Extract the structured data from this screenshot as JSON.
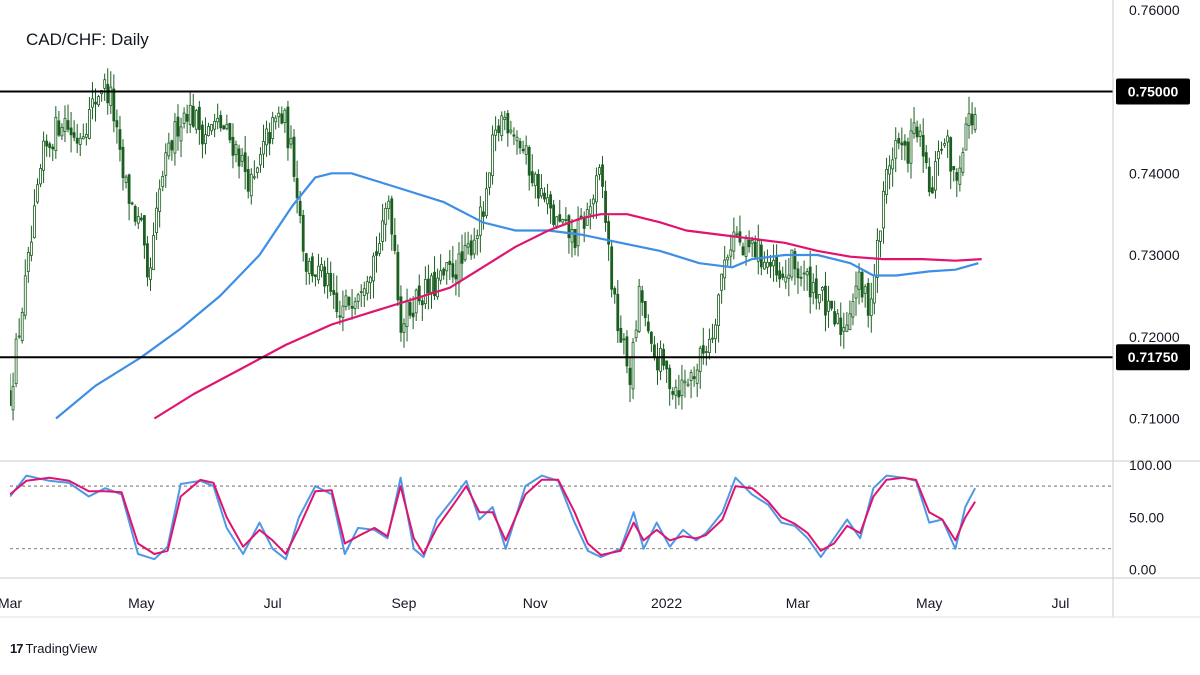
{
  "header": {
    "title": "CAD/CHF: Daily"
  },
  "branding": {
    "logo_glyph": "17",
    "logo_text": "TradingView"
  },
  "colors": {
    "candle": "#1b5e20",
    "ma_blue": "#3d8ee6",
    "ma_pink": "#e0136f",
    "stoch_k": "#4f98e8",
    "stoch_d": "#e0136f",
    "level_line": "#000000",
    "axis_border": "#cccccc"
  },
  "chart_data": [
    {
      "type": "line",
      "title": "CAD/CHF: Daily",
      "y_axis": {
        "ticks": [
          "0.76000",
          "0.74000",
          "0.73000",
          "0.72000",
          "0.71000"
        ],
        "tick_values": [
          0.76,
          0.74,
          0.73,
          0.72,
          0.71
        ],
        "range": [
          0.7048,
          0.7612
        ]
      },
      "x_axis": {
        "ticks": [
          "Mar",
          "May",
          "Jul",
          "Sep",
          "Nov",
          "2022",
          "Mar",
          "May",
          "Jul"
        ],
        "tick_months": [
          0,
          2,
          4,
          6,
          8,
          10,
          12,
          14,
          16
        ],
        "range_months": [
          0,
          16.8
        ]
      },
      "levels": [
        {
          "label": "0.75000",
          "value": 0.75
        },
        {
          "label": "0.71750",
          "value": 0.7175
        }
      ],
      "candles_close_by_month": [
        [
          0.0,
          0.713
        ],
        [
          0.3,
          0.73
        ],
        [
          0.5,
          0.742
        ],
        [
          0.8,
          0.747
        ],
        [
          1.0,
          0.744
        ],
        [
          1.2,
          0.747
        ],
        [
          1.4,
          0.751
        ],
        [
          1.55,
          0.749
        ],
        [
          1.7,
          0.74
        ],
        [
          1.9,
          0.735
        ],
        [
          2.0,
          0.733
        ],
        [
          2.1,
          0.7255
        ],
        [
          2.3,
          0.739
        ],
        [
          2.55,
          0.746
        ],
        [
          2.7,
          0.748
        ],
        [
          2.95,
          0.745
        ],
        [
          3.2,
          0.746
        ],
        [
          3.45,
          0.743
        ],
        [
          3.7,
          0.738
        ],
        [
          3.9,
          0.744
        ],
        [
          4.1,
          0.747
        ],
        [
          4.2,
          0.746
        ],
        [
          4.35,
          0.74
        ],
        [
          4.5,
          0.729
        ],
        [
          4.8,
          0.727
        ],
        [
          5.0,
          0.722
        ],
        [
          5.2,
          0.725
        ],
        [
          5.5,
          0.729
        ],
        [
          5.7,
          0.733
        ],
        [
          5.75,
          0.738
        ],
        [
          5.85,
          0.732
        ],
        [
          5.95,
          0.7215
        ],
        [
          6.2,
          0.725
        ],
        [
          6.45,
          0.726
        ],
        [
          6.7,
          0.728
        ],
        [
          6.9,
          0.729
        ],
        [
          7.1,
          0.733
        ],
        [
          7.25,
          0.736
        ],
        [
          7.35,
          0.743
        ],
        [
          7.5,
          0.747
        ],
        [
          7.65,
          0.746
        ],
        [
          7.85,
          0.742
        ],
        [
          8.0,
          0.739
        ],
        [
          8.3,
          0.734
        ],
        [
          8.6,
          0.732
        ],
        [
          8.8,
          0.735
        ],
        [
          9.0,
          0.74
        ],
        [
          9.05,
          0.736
        ],
        [
          9.2,
          0.724
        ],
        [
          9.3,
          0.72
        ],
        [
          9.45,
          0.715
        ],
        [
          9.6,
          0.726
        ],
        [
          9.75,
          0.718
        ],
        [
          9.9,
          0.717
        ],
        [
          10.1,
          0.714
        ],
        [
          10.25,
          0.714
        ],
        [
          10.45,
          0.716
        ],
        [
          10.7,
          0.721
        ],
        [
          10.9,
          0.73
        ],
        [
          11.05,
          0.733
        ],
        [
          11.15,
          0.73
        ],
        [
          11.3,
          0.731
        ],
        [
          11.55,
          0.729
        ],
        [
          11.75,
          0.726
        ],
        [
          11.9,
          0.729
        ],
        [
          12.1,
          0.727
        ],
        [
          12.3,
          0.726
        ],
        [
          12.5,
          0.722
        ],
        [
          12.7,
          0.721
        ],
        [
          12.9,
          0.727
        ],
        [
          13.0,
          0.725
        ],
        [
          13.1,
          0.724
        ],
        [
          13.25,
          0.733
        ],
        [
          13.35,
          0.74
        ],
        [
          13.5,
          0.744
        ],
        [
          13.65,
          0.742
        ],
        [
          13.8,
          0.746
        ],
        [
          13.95,
          0.74
        ],
        [
          14.05,
          0.737
        ],
        [
          14.15,
          0.744
        ],
        [
          14.3,
          0.743
        ],
        [
          14.4,
          0.738
        ],
        [
          14.55,
          0.746
        ],
        [
          14.7,
          0.747
        ]
      ],
      "series": [
        {
          "role": "moving_average_blue",
          "points": [
            [
              0.7,
              0.71
            ],
            [
              1.3,
              0.714
            ],
            [
              2.0,
              0.7175
            ],
            [
              2.6,
              0.721
            ],
            [
              3.2,
              0.725
            ],
            [
              3.8,
              0.73
            ],
            [
              4.3,
              0.736
            ],
            [
              4.65,
              0.7395
            ],
            [
              4.9,
              0.74
            ],
            [
              5.2,
              0.74
            ],
            [
              5.8,
              0.7385
            ],
            [
              6.6,
              0.7365
            ],
            [
              7.2,
              0.734
            ],
            [
              7.7,
              0.733
            ],
            [
              8.2,
              0.733
            ],
            [
              8.7,
              0.7325
            ],
            [
              9.3,
              0.7315
            ],
            [
              9.9,
              0.7305
            ],
            [
              10.5,
              0.729
            ],
            [
              11.0,
              0.7285
            ],
            [
              11.3,
              0.7295
            ],
            [
              11.8,
              0.73
            ],
            [
              12.3,
              0.73
            ],
            [
              12.8,
              0.729
            ],
            [
              13.15,
              0.7275
            ],
            [
              13.5,
              0.7275
            ],
            [
              14.0,
              0.728
            ],
            [
              14.4,
              0.7282
            ],
            [
              14.75,
              0.729
            ]
          ]
        },
        {
          "role": "moving_average_pink",
          "points": [
            [
              2.2,
              0.71
            ],
            [
              2.8,
              0.713
            ],
            [
              3.5,
              0.716
            ],
            [
              4.2,
              0.719
            ],
            [
              4.9,
              0.7215
            ],
            [
              5.5,
              0.723
            ],
            [
              6.1,
              0.7245
            ],
            [
              6.7,
              0.726
            ],
            [
              7.2,
              0.7285
            ],
            [
              7.7,
              0.731
            ],
            [
              8.2,
              0.733
            ],
            [
              8.7,
              0.7345
            ],
            [
              9.0,
              0.735
            ],
            [
              9.4,
              0.735
            ],
            [
              9.9,
              0.734
            ],
            [
              10.3,
              0.733
            ],
            [
              10.8,
              0.7325
            ],
            [
              11.3,
              0.732
            ],
            [
              11.8,
              0.7315
            ],
            [
              12.3,
              0.7305
            ],
            [
              12.8,
              0.7298
            ],
            [
              13.3,
              0.7295
            ],
            [
              13.9,
              0.7295
            ],
            [
              14.4,
              0.7293
            ],
            [
              14.8,
              0.7295
            ]
          ]
        }
      ]
    },
    {
      "type": "line",
      "title": "",
      "y_axis": {
        "ticks": [
          "100.00",
          "50.00",
          "0.00"
        ],
        "tick_values": [
          100,
          50,
          0
        ],
        "range": [
          -8,
          104
        ]
      },
      "overbought": 80,
      "oversold": 20,
      "series": [
        {
          "role": "stochastic_k",
          "points": [
            [
              0.0,
              70
            ],
            [
              0.25,
              90
            ],
            [
              0.6,
              85
            ],
            [
              0.9,
              83
            ],
            [
              1.2,
              70
            ],
            [
              1.45,
              78
            ],
            [
              1.7,
              72
            ],
            [
              1.95,
              15
            ],
            [
              2.2,
              10
            ],
            [
              2.4,
              22
            ],
            [
              2.6,
              82
            ],
            [
              2.9,
              85
            ],
            [
              3.1,
              80
            ],
            [
              3.3,
              40
            ],
            [
              3.55,
              15
            ],
            [
              3.8,
              45
            ],
            [
              4.0,
              20
            ],
            [
              4.2,
              10
            ],
            [
              4.4,
              50
            ],
            [
              4.65,
              80
            ],
            [
              4.9,
              72
            ],
            [
              5.1,
              15
            ],
            [
              5.3,
              40
            ],
            [
              5.55,
              38
            ],
            [
              5.75,
              30
            ],
            [
              5.95,
              88
            ],
            [
              6.15,
              20
            ],
            [
              6.3,
              12
            ],
            [
              6.5,
              48
            ],
            [
              6.75,
              68
            ],
            [
              6.95,
              85
            ],
            [
              7.15,
              48
            ],
            [
              7.35,
              60
            ],
            [
              7.55,
              20
            ],
            [
              7.85,
              80
            ],
            [
              8.1,
              90
            ],
            [
              8.35,
              85
            ],
            [
              8.6,
              45
            ],
            [
              8.8,
              18
            ],
            [
              9.0,
              12
            ],
            [
              9.3,
              20
            ],
            [
              9.5,
              55
            ],
            [
              9.65,
              20
            ],
            [
              9.85,
              45
            ],
            [
              10.05,
              22
            ],
            [
              10.25,
              38
            ],
            [
              10.45,
              28
            ],
            [
              10.6,
              35
            ],
            [
              10.85,
              55
            ],
            [
              11.05,
              88
            ],
            [
              11.3,
              72
            ],
            [
              11.55,
              62
            ],
            [
              11.75,
              45
            ],
            [
              11.95,
              42
            ],
            [
              12.15,
              30
            ],
            [
              12.35,
              12
            ],
            [
              12.55,
              30
            ],
            [
              12.75,
              48
            ],
            [
              12.95,
              30
            ],
            [
              13.15,
              78
            ],
            [
              13.35,
              90
            ],
            [
              13.6,
              88
            ],
            [
              13.8,
              85
            ],
            [
              14.0,
              45
            ],
            [
              14.2,
              48
            ],
            [
              14.4,
              20
            ],
            [
              14.55,
              60
            ],
            [
              14.7,
              78
            ]
          ]
        },
        {
          "role": "stochastic_d",
          "points": [
            [
              0.0,
              72
            ],
            [
              0.25,
              85
            ],
            [
              0.6,
              88
            ],
            [
              0.9,
              85
            ],
            [
              1.2,
              75
            ],
            [
              1.45,
              75
            ],
            [
              1.7,
              74
            ],
            [
              1.95,
              25
            ],
            [
              2.2,
              15
            ],
            [
              2.4,
              18
            ],
            [
              2.6,
              70
            ],
            [
              2.9,
              86
            ],
            [
              3.1,
              83
            ],
            [
              3.3,
              50
            ],
            [
              3.55,
              22
            ],
            [
              3.8,
              38
            ],
            [
              4.0,
              28
            ],
            [
              4.2,
              15
            ],
            [
              4.4,
              40
            ],
            [
              4.65,
              75
            ],
            [
              4.9,
              76
            ],
            [
              5.1,
              25
            ],
            [
              5.3,
              32
            ],
            [
              5.55,
              40
            ],
            [
              5.75,
              32
            ],
            [
              5.95,
              80
            ],
            [
              6.15,
              30
            ],
            [
              6.3,
              15
            ],
            [
              6.5,
              40
            ],
            [
              6.75,
              62
            ],
            [
              6.95,
              80
            ],
            [
              7.15,
              55
            ],
            [
              7.35,
              55
            ],
            [
              7.55,
              28
            ],
            [
              7.85,
              72
            ],
            [
              8.1,
              86
            ],
            [
              8.35,
              86
            ],
            [
              8.6,
              55
            ],
            [
              8.8,
              25
            ],
            [
              9.0,
              14
            ],
            [
              9.3,
              18
            ],
            [
              9.5,
              45
            ],
            [
              9.65,
              28
            ],
            [
              9.85,
              38
            ],
            [
              10.05,
              28
            ],
            [
              10.25,
              32
            ],
            [
              10.45,
              30
            ],
            [
              10.6,
              33
            ],
            [
              10.85,
              48
            ],
            [
              11.05,
              80
            ],
            [
              11.3,
              78
            ],
            [
              11.55,
              65
            ],
            [
              11.75,
              50
            ],
            [
              11.95,
              44
            ],
            [
              12.15,
              35
            ],
            [
              12.35,
              18
            ],
            [
              12.55,
              25
            ],
            [
              12.75,
              42
            ],
            [
              12.95,
              35
            ],
            [
              13.15,
              70
            ],
            [
              13.35,
              86
            ],
            [
              13.6,
              88
            ],
            [
              13.8,
              86
            ],
            [
              14.0,
              55
            ],
            [
              14.2,
              48
            ],
            [
              14.4,
              28
            ],
            [
              14.55,
              50
            ],
            [
              14.7,
              65
            ]
          ]
        }
      ]
    }
  ]
}
